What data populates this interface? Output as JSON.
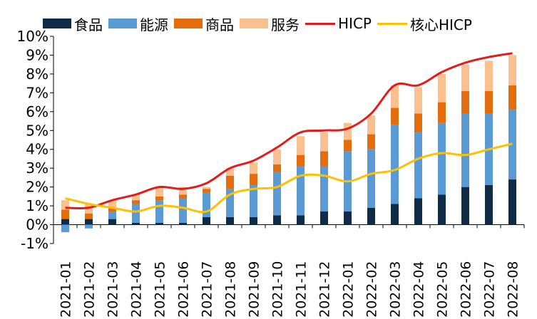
{
  "chart_data": {
    "type": "bar",
    "stacked": true,
    "categories": [
      "2021-01",
      "2021-02",
      "2021-03",
      "2021-04",
      "2021-05",
      "2021-06",
      "2021-07",
      "2021-08",
      "2021-09",
      "2021-10",
      "2021-11",
      "2021-12",
      "2022-01",
      "2022-02",
      "2022-03",
      "2022-04",
      "2022-05",
      "2022-06",
      "2022-07",
      "2022-08"
    ],
    "ylim": [
      -1,
      10
    ],
    "yticks": [
      "-1%",
      "0%",
      "1%",
      "2%",
      "3%",
      "4%",
      "5%",
      "6%",
      "7%",
      "8%",
      "9%",
      "10%"
    ],
    "legend_position": "top",
    "colors": {
      "food": "#0f2b46",
      "energy": "#5b9bd5",
      "goods": "#e46c0a",
      "services": "#fac090",
      "hicp": "#e31b1b",
      "core": "#ffc000"
    },
    "series": [
      {
        "name": "食品",
        "kind": "bar",
        "values": [
          0.3,
          0.3,
          0.3,
          0.1,
          0.1,
          0.1,
          0.4,
          0.4,
          0.4,
          0.5,
          0.5,
          0.7,
          0.7,
          0.9,
          1.1,
          1.4,
          1.6,
          2.0,
          2.1,
          2.4
        ]
      },
      {
        "name": "能源",
        "kind": "bar",
        "values": [
          -0.4,
          -0.2,
          0.4,
          1.0,
          1.2,
          1.3,
          1.3,
          1.5,
          1.7,
          2.3,
          2.6,
          2.4,
          3.2,
          3.1,
          4.2,
          3.5,
          3.8,
          3.9,
          3.8,
          3.7
        ]
      },
      {
        "name": "商品",
        "kind": "bar",
        "values": [
          0.5,
          0.3,
          0.2,
          0.2,
          0.2,
          0.2,
          0.2,
          0.7,
          0.6,
          0.4,
          0.6,
          0.8,
          0.6,
          0.8,
          0.9,
          1.0,
          1.1,
          1.2,
          1.2,
          1.3
        ]
      },
      {
        "name": "服务",
        "kind": "bar",
        "values": [
          0.5,
          0.5,
          0.4,
          0.3,
          0.5,
          0.4,
          0.1,
          0.4,
          0.6,
          0.8,
          1.0,
          1.0,
          0.9,
          1.0,
          1.2,
          1.4,
          1.5,
          1.4,
          1.6,
          1.6
        ]
      },
      {
        "name": "HICP",
        "kind": "line",
        "values": [
          0.9,
          0.9,
          1.3,
          1.6,
          2.0,
          1.9,
          2.2,
          3.0,
          3.4,
          4.1,
          4.9,
          5.0,
          5.1,
          5.9,
          7.4,
          7.4,
          8.1,
          8.6,
          8.9,
          9.1
        ]
      },
      {
        "name": "核心HICP",
        "kind": "line",
        "values": [
          1.4,
          1.1,
          0.9,
          0.7,
          1.0,
          0.9,
          0.7,
          1.6,
          1.9,
          2.0,
          2.6,
          2.6,
          2.3,
          2.7,
          2.9,
          3.5,
          3.8,
          3.7,
          4.0,
          4.3
        ]
      }
    ]
  }
}
